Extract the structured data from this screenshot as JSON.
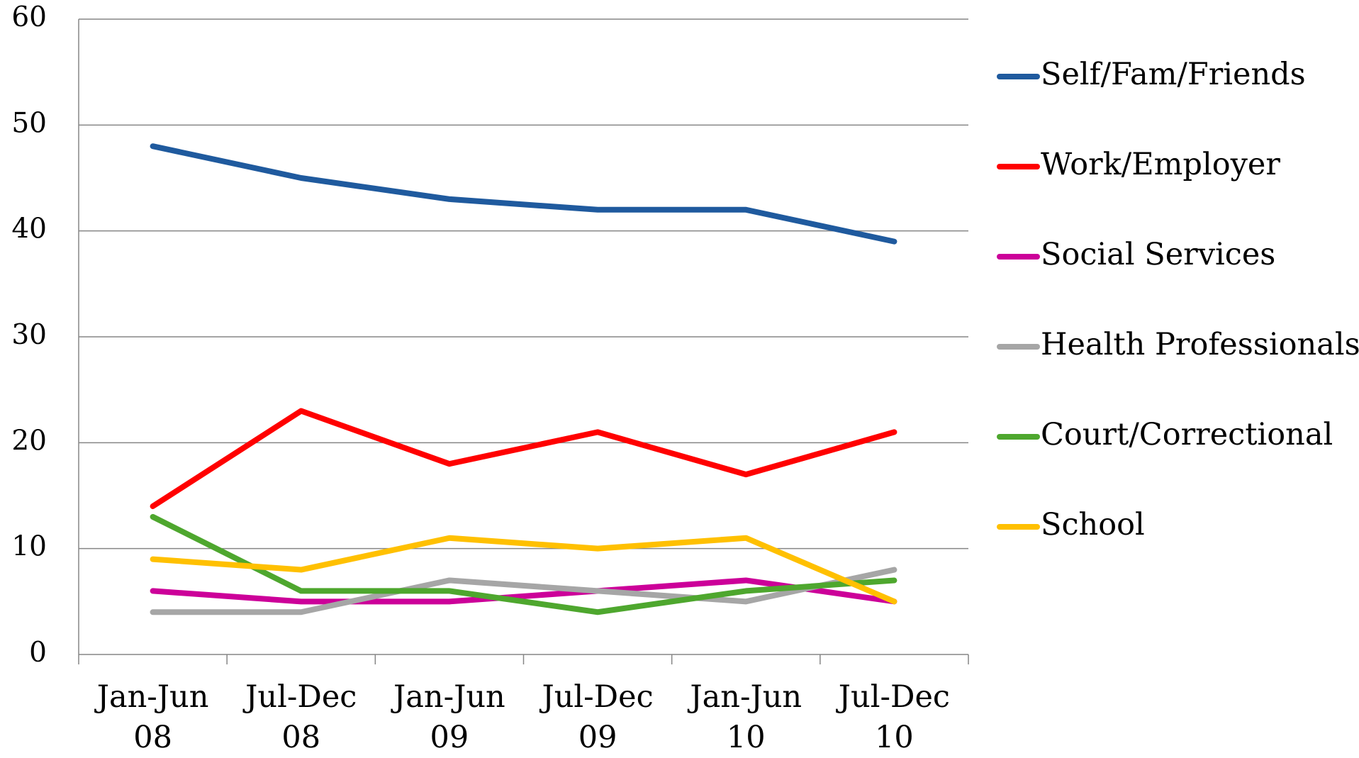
{
  "chart_data": {
    "type": "line",
    "categories": [
      "Jan-Jun 08",
      "Jul-Dec 08",
      "Jan-Jun 09",
      "Jul-Dec 09",
      "Jan-Jun 10",
      "Jul-Dec 10"
    ],
    "series": [
      {
        "name": "Self/Fam/Friends",
        "color": "#1f5a9e",
        "values": [
          48,
          45,
          43,
          42,
          42,
          39
        ]
      },
      {
        "name": "Work/Employer",
        "color": "#ff0000",
        "values": [
          14,
          23,
          18,
          21,
          17,
          21
        ]
      },
      {
        "name": "Social Services",
        "color": "#cc0099",
        "values": [
          6,
          5,
          5,
          6,
          7,
          5
        ]
      },
      {
        "name": "Health Professionals",
        "color": "#a6a6a6",
        "values": [
          4,
          4,
          7,
          6,
          5,
          8
        ]
      },
      {
        "name": "Court/Correctional",
        "color": "#4ea72e",
        "values": [
          13,
          6,
          6,
          4,
          6,
          7
        ]
      },
      {
        "name": "School",
        "color": "#ffc000",
        "values": [
          9,
          8,
          11,
          10,
          11,
          5
        ]
      }
    ],
    "ylim": [
      0,
      60
    ],
    "yticks": [
      0,
      10,
      20,
      30,
      40,
      50,
      60
    ],
    "grid": true,
    "legend": "right"
  }
}
